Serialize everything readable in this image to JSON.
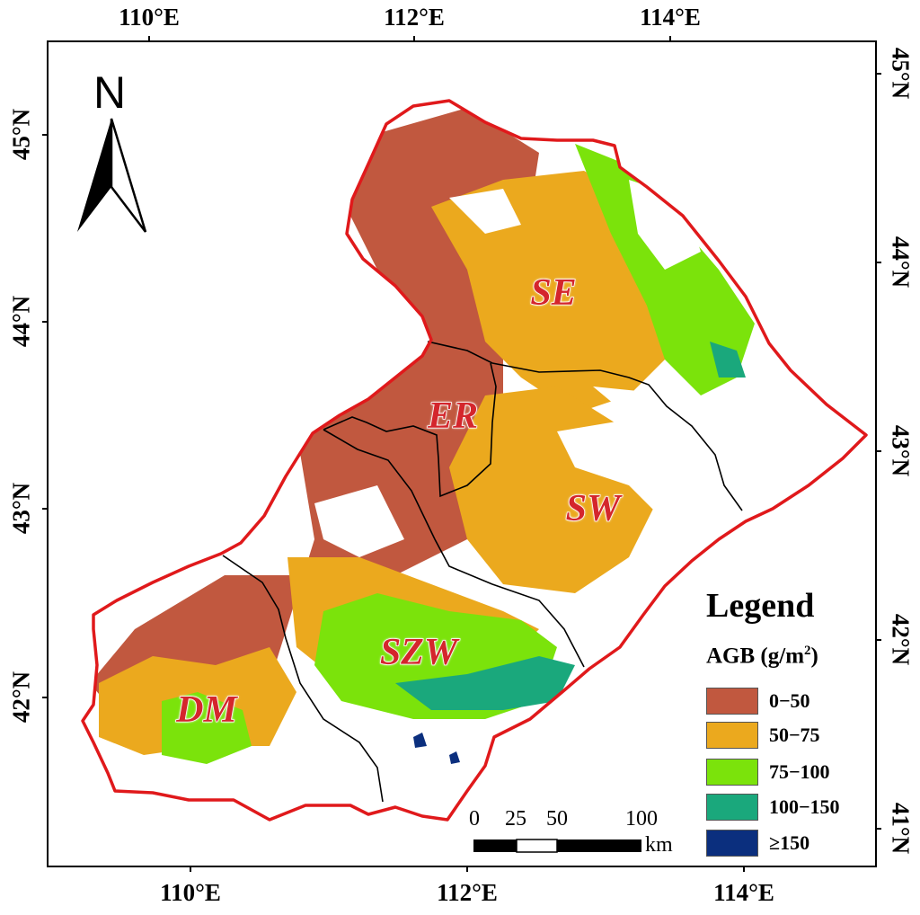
{
  "axes": {
    "top_ticks": [
      "110°E",
      "112°E",
      "114°E"
    ],
    "bottom_ticks": [
      "110°E",
      "112°E",
      "114°E"
    ],
    "left_ticks": [
      "45°N",
      "44°N",
      "43°N",
      "42°N"
    ],
    "right_ticks": [
      "45°N",
      "44°N",
      "43°N",
      "42°N",
      "41°N"
    ]
  },
  "north_arrow": {
    "letter": "N",
    "icon": "north-arrow-icon"
  },
  "regions": [
    "SE",
    "ER",
    "SW",
    "SZW",
    "DM"
  ],
  "legend": {
    "title": "Legend",
    "subtitle": "AGB (g/m",
    "subtitle_sup": "2",
    "subtitle_end": ")",
    "classes": [
      {
        "label": "0−50",
        "color": "#c1583f"
      },
      {
        "label": "50−75",
        "color": "#eba91e"
      },
      {
        "label": "75−100",
        "color": "#7be30b"
      },
      {
        "label": "100−150",
        "color": "#1aa87c"
      },
      {
        "label": "≥150",
        "color": "#0b2f7e"
      }
    ]
  },
  "scale_bar": {
    "labels": [
      "0",
      "25",
      "50",
      "100"
    ],
    "unit": "km"
  },
  "colors": {
    "boundary": "#e0191b",
    "internal_boundary": "#000000"
  }
}
